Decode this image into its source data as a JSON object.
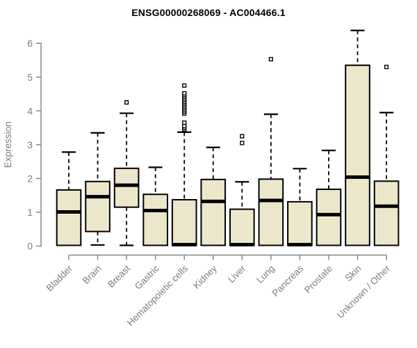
{
  "chart_data": {
    "type": "boxplot",
    "title": "ENSG00000268069 - AC004466.1",
    "ylabel": "Expression",
    "xlabel": "",
    "ylim": [
      0,
      6.6
    ],
    "yticks": [
      0,
      1,
      2,
      3,
      4,
      5,
      6
    ],
    "grid": false,
    "legend": "none",
    "x_label_rotation": -45,
    "categories": [
      "Bladder",
      "Brain",
      "Breast",
      "Gastric",
      "Hematopoietic cells",
      "Kidney",
      "Liver",
      "Lung",
      "Pancreas",
      "Prostate",
      "Skin",
      "Unknown / Other"
    ],
    "series": [
      {
        "name": "Bladder",
        "whisker_low": 0.02,
        "q1": 0.02,
        "median": 1.01,
        "q3": 1.66,
        "whisker_high": 2.78,
        "outliers": []
      },
      {
        "name": "Brain",
        "whisker_low": 0.03,
        "q1": 0.43,
        "median": 1.46,
        "q3": 1.91,
        "whisker_high": 3.35,
        "outliers": []
      },
      {
        "name": "Breast",
        "whisker_low": 0.02,
        "q1": 1.15,
        "median": 1.8,
        "q3": 2.3,
        "whisker_high": 3.93,
        "outliers": [
          4.25
        ]
      },
      {
        "name": "Gastric",
        "whisker_low": 0.02,
        "q1": 0.02,
        "median": 1.05,
        "q3": 1.53,
        "whisker_high": 2.33,
        "outliers": []
      },
      {
        "name": "Hematopoietic cells",
        "whisker_low": 0.02,
        "q1": 0.02,
        "median": 0.04,
        "q3": 1.37,
        "whisker_high": 3.37,
        "outliers": [
          3.45,
          3.5,
          3.55,
          3.65,
          3.92,
          3.97,
          4.02,
          4.07,
          4.12,
          4.17,
          4.22,
          4.27,
          4.32,
          4.37,
          4.42,
          4.47,
          4.52,
          4.75
        ]
      },
      {
        "name": "Kidney",
        "whisker_low": 0.02,
        "q1": 0.02,
        "median": 1.32,
        "q3": 1.97,
        "whisker_high": 2.92,
        "outliers": []
      },
      {
        "name": "Liver",
        "whisker_low": 0.02,
        "q1": 0.02,
        "median": 0.04,
        "q3": 1.09,
        "whisker_high": 1.9,
        "outliers": [
          3.05,
          3.25
        ]
      },
      {
        "name": "Lung",
        "whisker_low": 0.02,
        "q1": 0.02,
        "median": 1.35,
        "q3": 1.98,
        "whisker_high": 3.9,
        "outliers": [
          5.53
        ]
      },
      {
        "name": "Pancreas",
        "whisker_low": 0.02,
        "q1": 0.02,
        "median": 0.04,
        "q3": 1.31,
        "whisker_high": 2.29,
        "outliers": []
      },
      {
        "name": "Prostate",
        "whisker_low": 0.02,
        "q1": 0.02,
        "median": 0.93,
        "q3": 1.68,
        "whisker_high": 2.83,
        "outliers": []
      },
      {
        "name": "Skin",
        "whisker_low": 0.02,
        "q1": 0.02,
        "median": 2.04,
        "q3": 5.35,
        "whisker_high": 6.38,
        "outliers": []
      },
      {
        "name": "Unknown / Other",
        "whisker_low": 0.02,
        "q1": 0.02,
        "median": 1.18,
        "q3": 1.92,
        "whisker_high": 3.95,
        "outliers": [
          5.3
        ]
      }
    ],
    "colors": {
      "box_fill": "#ECE6CB",
      "box_border": "#000000",
      "median": "#000000",
      "whisker": "#000000",
      "outlier": "#000000",
      "axis": "#878787",
      "tick_label": "#7E7E7E",
      "title": "#000000",
      "background": "#FFFFFF"
    }
  }
}
